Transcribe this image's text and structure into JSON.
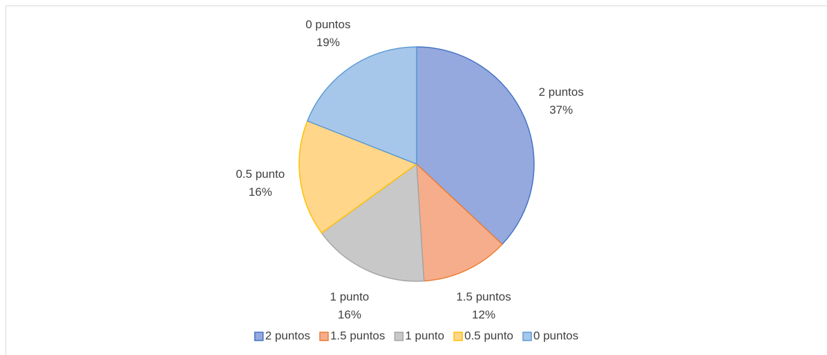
{
  "chart_data": {
    "type": "pie",
    "categories": [
      "2 puntos",
      "1.5 puntos",
      "1 punto",
      "0.5 punto",
      "0 puntos"
    ],
    "values": [
      37,
      12,
      16,
      16,
      19
    ],
    "value_labels": [
      "37%",
      "12%",
      "16%",
      "16%",
      "19%"
    ],
    "colors": [
      "#95a9de",
      "#f6ad8c",
      "#c8c8c8",
      "#ffd68a",
      "#a7c7ea"
    ],
    "edge_colors": [
      "#4472c4",
      "#ed7d31",
      "#a5a5a5",
      "#ffc000",
      "#5b9bd5"
    ],
    "legend": "bottom"
  }
}
